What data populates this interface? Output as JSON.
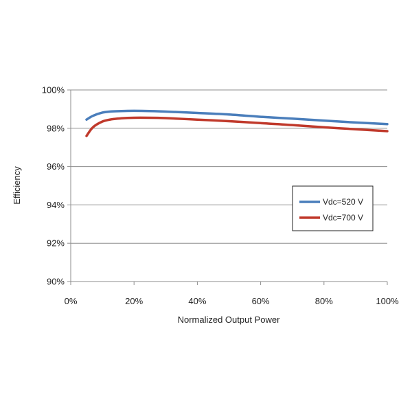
{
  "chart_data": {
    "type": "line",
    "title": "",
    "xlabel": "Normalized Output Power",
    "ylabel": "Efficiency",
    "xlim": [
      0,
      100
    ],
    "ylim": [
      90,
      100
    ],
    "x_ticks": [
      0,
      20,
      40,
      60,
      80,
      100
    ],
    "x_tick_labels": [
      "0%",
      "20%",
      "40%",
      "60%",
      "80%",
      "100%"
    ],
    "y_ticks": [
      90,
      92,
      94,
      96,
      98,
      100
    ],
    "y_tick_labels": [
      "90%",
      "92%",
      "94%",
      "96%",
      "98%",
      "100%"
    ],
    "grid": "horizontal",
    "legend_position": "right",
    "series": [
      {
        "name": "Vdc=520 V",
        "color": "#4a7ebb",
        "x": [
          5,
          7,
          10,
          13,
          16,
          20,
          25,
          30,
          40,
          50,
          60,
          70,
          80,
          90,
          100
        ],
        "y": [
          98.45,
          98.65,
          98.82,
          98.88,
          98.9,
          98.91,
          98.9,
          98.87,
          98.8,
          98.72,
          98.6,
          98.5,
          98.4,
          98.3,
          98.22
        ]
      },
      {
        "name": "Vdc=700 V",
        "color": "#c0392b",
        "x": [
          5,
          7,
          10,
          13,
          16,
          20,
          25,
          30,
          40,
          50,
          60,
          70,
          80,
          90,
          100
        ],
        "y": [
          97.6,
          98.05,
          98.35,
          98.47,
          98.52,
          98.55,
          98.55,
          98.53,
          98.45,
          98.37,
          98.27,
          98.17,
          98.05,
          97.95,
          97.85
        ]
      }
    ]
  }
}
